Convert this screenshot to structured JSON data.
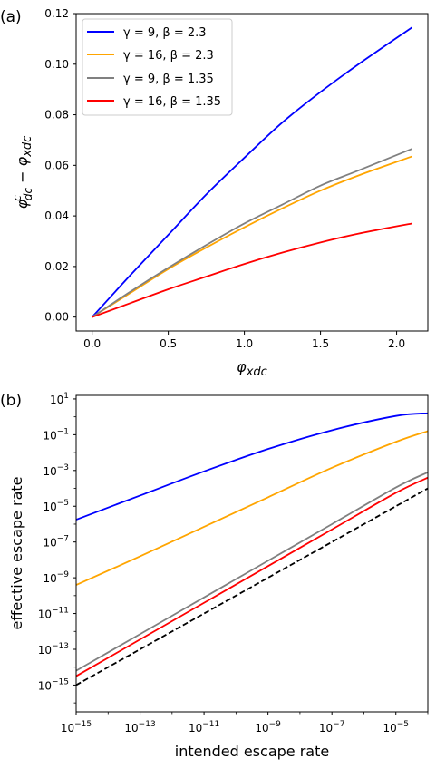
{
  "chart_data": [
    {
      "panel_label": "(a)",
      "type": "line",
      "title": "",
      "xlabel": "φxdc",
      "ylabel": "φcdc − φxdc",
      "xlim": [
        -0.105,
        2.205
      ],
      "ylim": [
        -0.0055,
        0.12
      ],
      "xticks": [
        0.0,
        0.5,
        1.0,
        1.5,
        2.0
      ],
      "xtick_labels": [
        "0.0",
        "0.5",
        "1.0",
        "1.5",
        "2.0"
      ],
      "yticks": [
        0.0,
        0.02,
        0.04,
        0.06,
        0.08,
        0.1,
        0.12
      ],
      "ytick_labels": [
        "0.00",
        "0.02",
        "0.04",
        "0.06",
        "0.08",
        "0.10",
        "0.12"
      ],
      "grid": false,
      "legend_position": "upper-left",
      "series": [
        {
          "name": "γ = 9, β = 2.3",
          "color": "#0000ff",
          "x": [
            0,
            0.25,
            0.5,
            0.75,
            1.0,
            1.25,
            1.5,
            1.75,
            2.1
          ],
          "y": [
            0,
            0.0165,
            0.0325,
            0.0485,
            0.063,
            0.077,
            0.089,
            0.1,
            0.1145
          ]
        },
        {
          "name": "γ = 16, β = 2.3",
          "color": "#ffa500",
          "x": [
            0,
            0.25,
            0.5,
            0.75,
            1.0,
            1.25,
            1.5,
            1.75,
            2.1
          ],
          "y": [
            0,
            0.0095,
            0.019,
            0.0275,
            0.0355,
            0.043,
            0.05,
            0.056,
            0.0635
          ]
        },
        {
          "name": "γ = 9, β = 1.35",
          "color": "#808080",
          "x": [
            0,
            0.25,
            0.5,
            0.75,
            1.0,
            1.25,
            1.5,
            1.75,
            2.1
          ],
          "y": [
            0,
            0.01,
            0.0195,
            0.0285,
            0.037,
            0.0445,
            0.052,
            0.058,
            0.0665
          ]
        },
        {
          "name": "γ = 16, β = 1.35",
          "color": "#ff0000",
          "x": [
            0,
            0.25,
            0.5,
            0.75,
            1.0,
            1.25,
            1.5,
            1.75,
            2.1
          ],
          "y": [
            0,
            0.0055,
            0.011,
            0.016,
            0.021,
            0.0255,
            0.0295,
            0.033,
            0.037
          ]
        }
      ]
    },
    {
      "panel_label": "(b)",
      "type": "line",
      "title": "",
      "xlabel": "intended escape rate",
      "ylabel": "effective escape rate",
      "x_scale": "log",
      "y_scale": "log",
      "xlim_log10": [
        -15,
        -4
      ],
      "ylim_log10": [
        -16.5,
        1.2
      ],
      "xticks_log10": [
        -15,
        -13,
        -11,
        -9,
        -7,
        -5
      ],
      "xtick_labels": [
        {
          "base": "10",
          "exp": "−15"
        },
        {
          "base": "10",
          "exp": "−13"
        },
        {
          "base": "10",
          "exp": "−11"
        },
        {
          "base": "10",
          "exp": "−9"
        },
        {
          "base": "10",
          "exp": "−7"
        },
        {
          "base": "10",
          "exp": "−5"
        }
      ],
      "yticks_log10": [
        1,
        -1,
        -3,
        -5,
        -7,
        -9,
        -11,
        -13,
        -15
      ],
      "ytick_labels": [
        {
          "base": "10",
          "exp": "1"
        },
        {
          "base": "10",
          "exp": "−1"
        },
        {
          "base": "10",
          "exp": "−3"
        },
        {
          "base": "10",
          "exp": "−5"
        },
        {
          "base": "10",
          "exp": "−7"
        },
        {
          "base": "10",
          "exp": "−9"
        },
        {
          "base": "10",
          "exp": "−11"
        },
        {
          "base": "10",
          "exp": "−13"
        },
        {
          "base": "10",
          "exp": "−15"
        }
      ],
      "grid": false,
      "series": [
        {
          "color": "#0000ff",
          "style": "solid",
          "x_log10": [
            -15,
            -13,
            -11,
            -9,
            -7,
            -5,
            -4
          ],
          "y_log10": [
            -5.75,
            -4.4,
            -3.05,
            -1.8,
            -0.75,
            0.05,
            0.2
          ]
        },
        {
          "color": "#ffa500",
          "style": "solid",
          "x_log10": [
            -15,
            -13,
            -11,
            -9,
            -7,
            -5,
            -4
          ],
          "y_log10": [
            -9.4,
            -7.8,
            -6.15,
            -4.5,
            -2.85,
            -1.4,
            -0.8
          ]
        },
        {
          "color": "#808080",
          "style": "solid",
          "x_log10": [
            -15,
            -13,
            -11,
            -9,
            -7,
            -5,
            -4
          ],
          "y_log10": [
            -14.2,
            -12.15,
            -10.1,
            -8.05,
            -6.0,
            -3.95,
            -3.1
          ]
        },
        {
          "color": "#ff0000",
          "style": "solid",
          "x_log10": [
            -15,
            -13,
            -11,
            -9,
            -7,
            -5,
            -4
          ],
          "y_log10": [
            -14.5,
            -12.45,
            -10.4,
            -8.35,
            -6.3,
            -4.25,
            -3.4
          ]
        },
        {
          "color": "#000000",
          "style": "dashed",
          "x_log10": [
            -15,
            -4
          ],
          "y_log10": [
            -15,
            -4
          ]
        }
      ]
    }
  ]
}
